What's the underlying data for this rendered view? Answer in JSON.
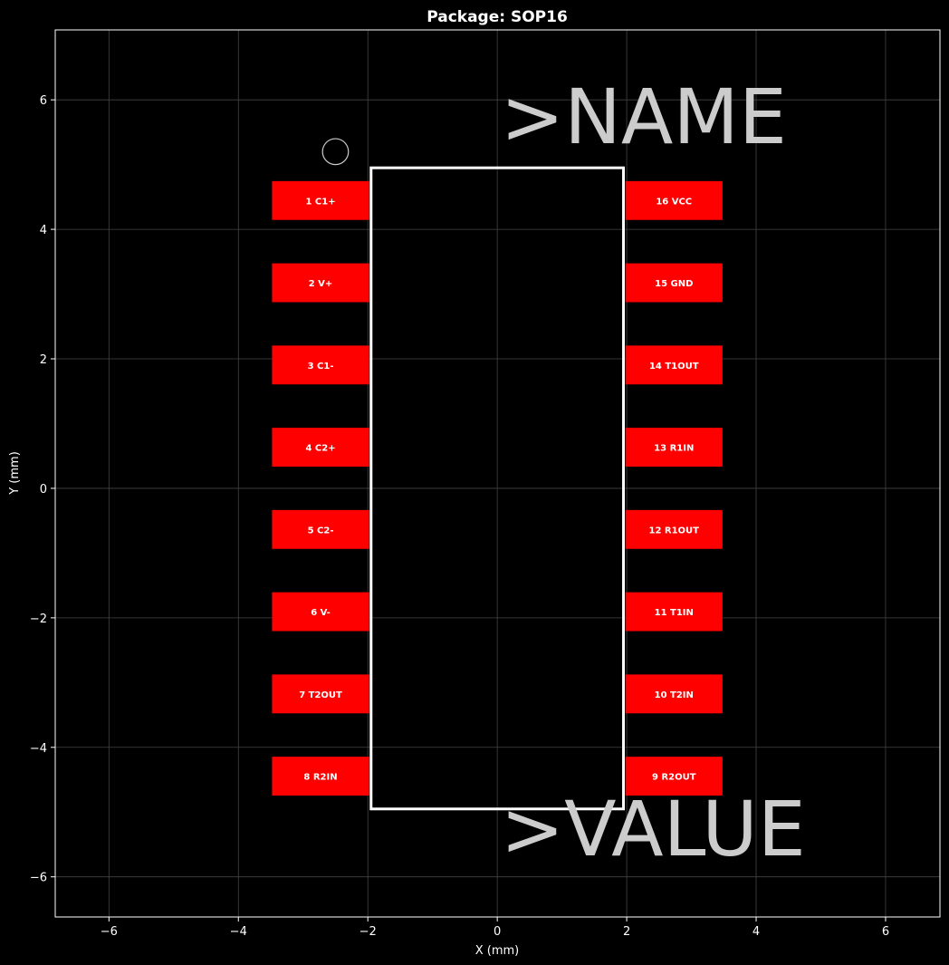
{
  "title": "Package: SOP16",
  "xlabel": "X (mm)",
  "ylabel": "Y (mm)",
  "xlim": [
    -6.83,
    6.84
  ],
  "ylim": [
    -6.62,
    7.08
  ],
  "xticks": [
    -6,
    -4,
    -2,
    0,
    2,
    4,
    6
  ],
  "yticks": [
    -6,
    -4,
    -2,
    0,
    2,
    4,
    6
  ],
  "grid": true,
  "colors": {
    "background": "#000000",
    "pad": "#ff0000",
    "outline": "#ffffff",
    "text": "#cccccc",
    "grid": "#444444"
  },
  "body": {
    "x": [
      -1.95,
      1.95
    ],
    "y": [
      -4.95,
      4.95
    ]
  },
  "pin1_marker": {
    "x": -2.5,
    "y": 5.2,
    "r": 0.2
  },
  "pad_size": {
    "w": 1.5,
    "h": 0.6
  },
  "pads": [
    {
      "label": "1 C1+",
      "x": -2.73,
      "y": 4.445
    },
    {
      "label": "2 V+",
      "x": -2.73,
      "y": 3.175
    },
    {
      "label": "3 C1-",
      "x": -2.73,
      "y": 1.905
    },
    {
      "label": "4 C2+",
      "x": -2.73,
      "y": 0.635
    },
    {
      "label": "5 C2-",
      "x": -2.73,
      "y": -0.635
    },
    {
      "label": "6 V-",
      "x": -2.73,
      "y": -1.905
    },
    {
      "label": "7 T2OUT",
      "x": -2.73,
      "y": -3.175
    },
    {
      "label": "8 R2IN",
      "x": -2.73,
      "y": -4.445
    },
    {
      "label": "9 R2OUT",
      "x": 2.73,
      "y": -4.445
    },
    {
      "label": "10 T2IN",
      "x": 2.73,
      "y": -3.175
    },
    {
      "label": "11 T1IN",
      "x": 2.73,
      "y": -1.905
    },
    {
      "label": "12 R1OUT",
      "x": 2.73,
      "y": -0.635
    },
    {
      "label": "13 R1IN",
      "x": 2.73,
      "y": 0.635
    },
    {
      "label": "14 T1OUT",
      "x": 2.73,
      "y": 1.905
    },
    {
      "label": "15 GND",
      "x": 2.73,
      "y": 3.175
    },
    {
      "label": "16 VCC",
      "x": 2.73,
      "y": 4.445
    }
  ],
  "texts": [
    {
      "label": ">NAME",
      "x": 0.05,
      "y": 5.75
    },
    {
      "label": ">VALUE",
      "x": 0.05,
      "y": -5.25
    }
  ]
}
